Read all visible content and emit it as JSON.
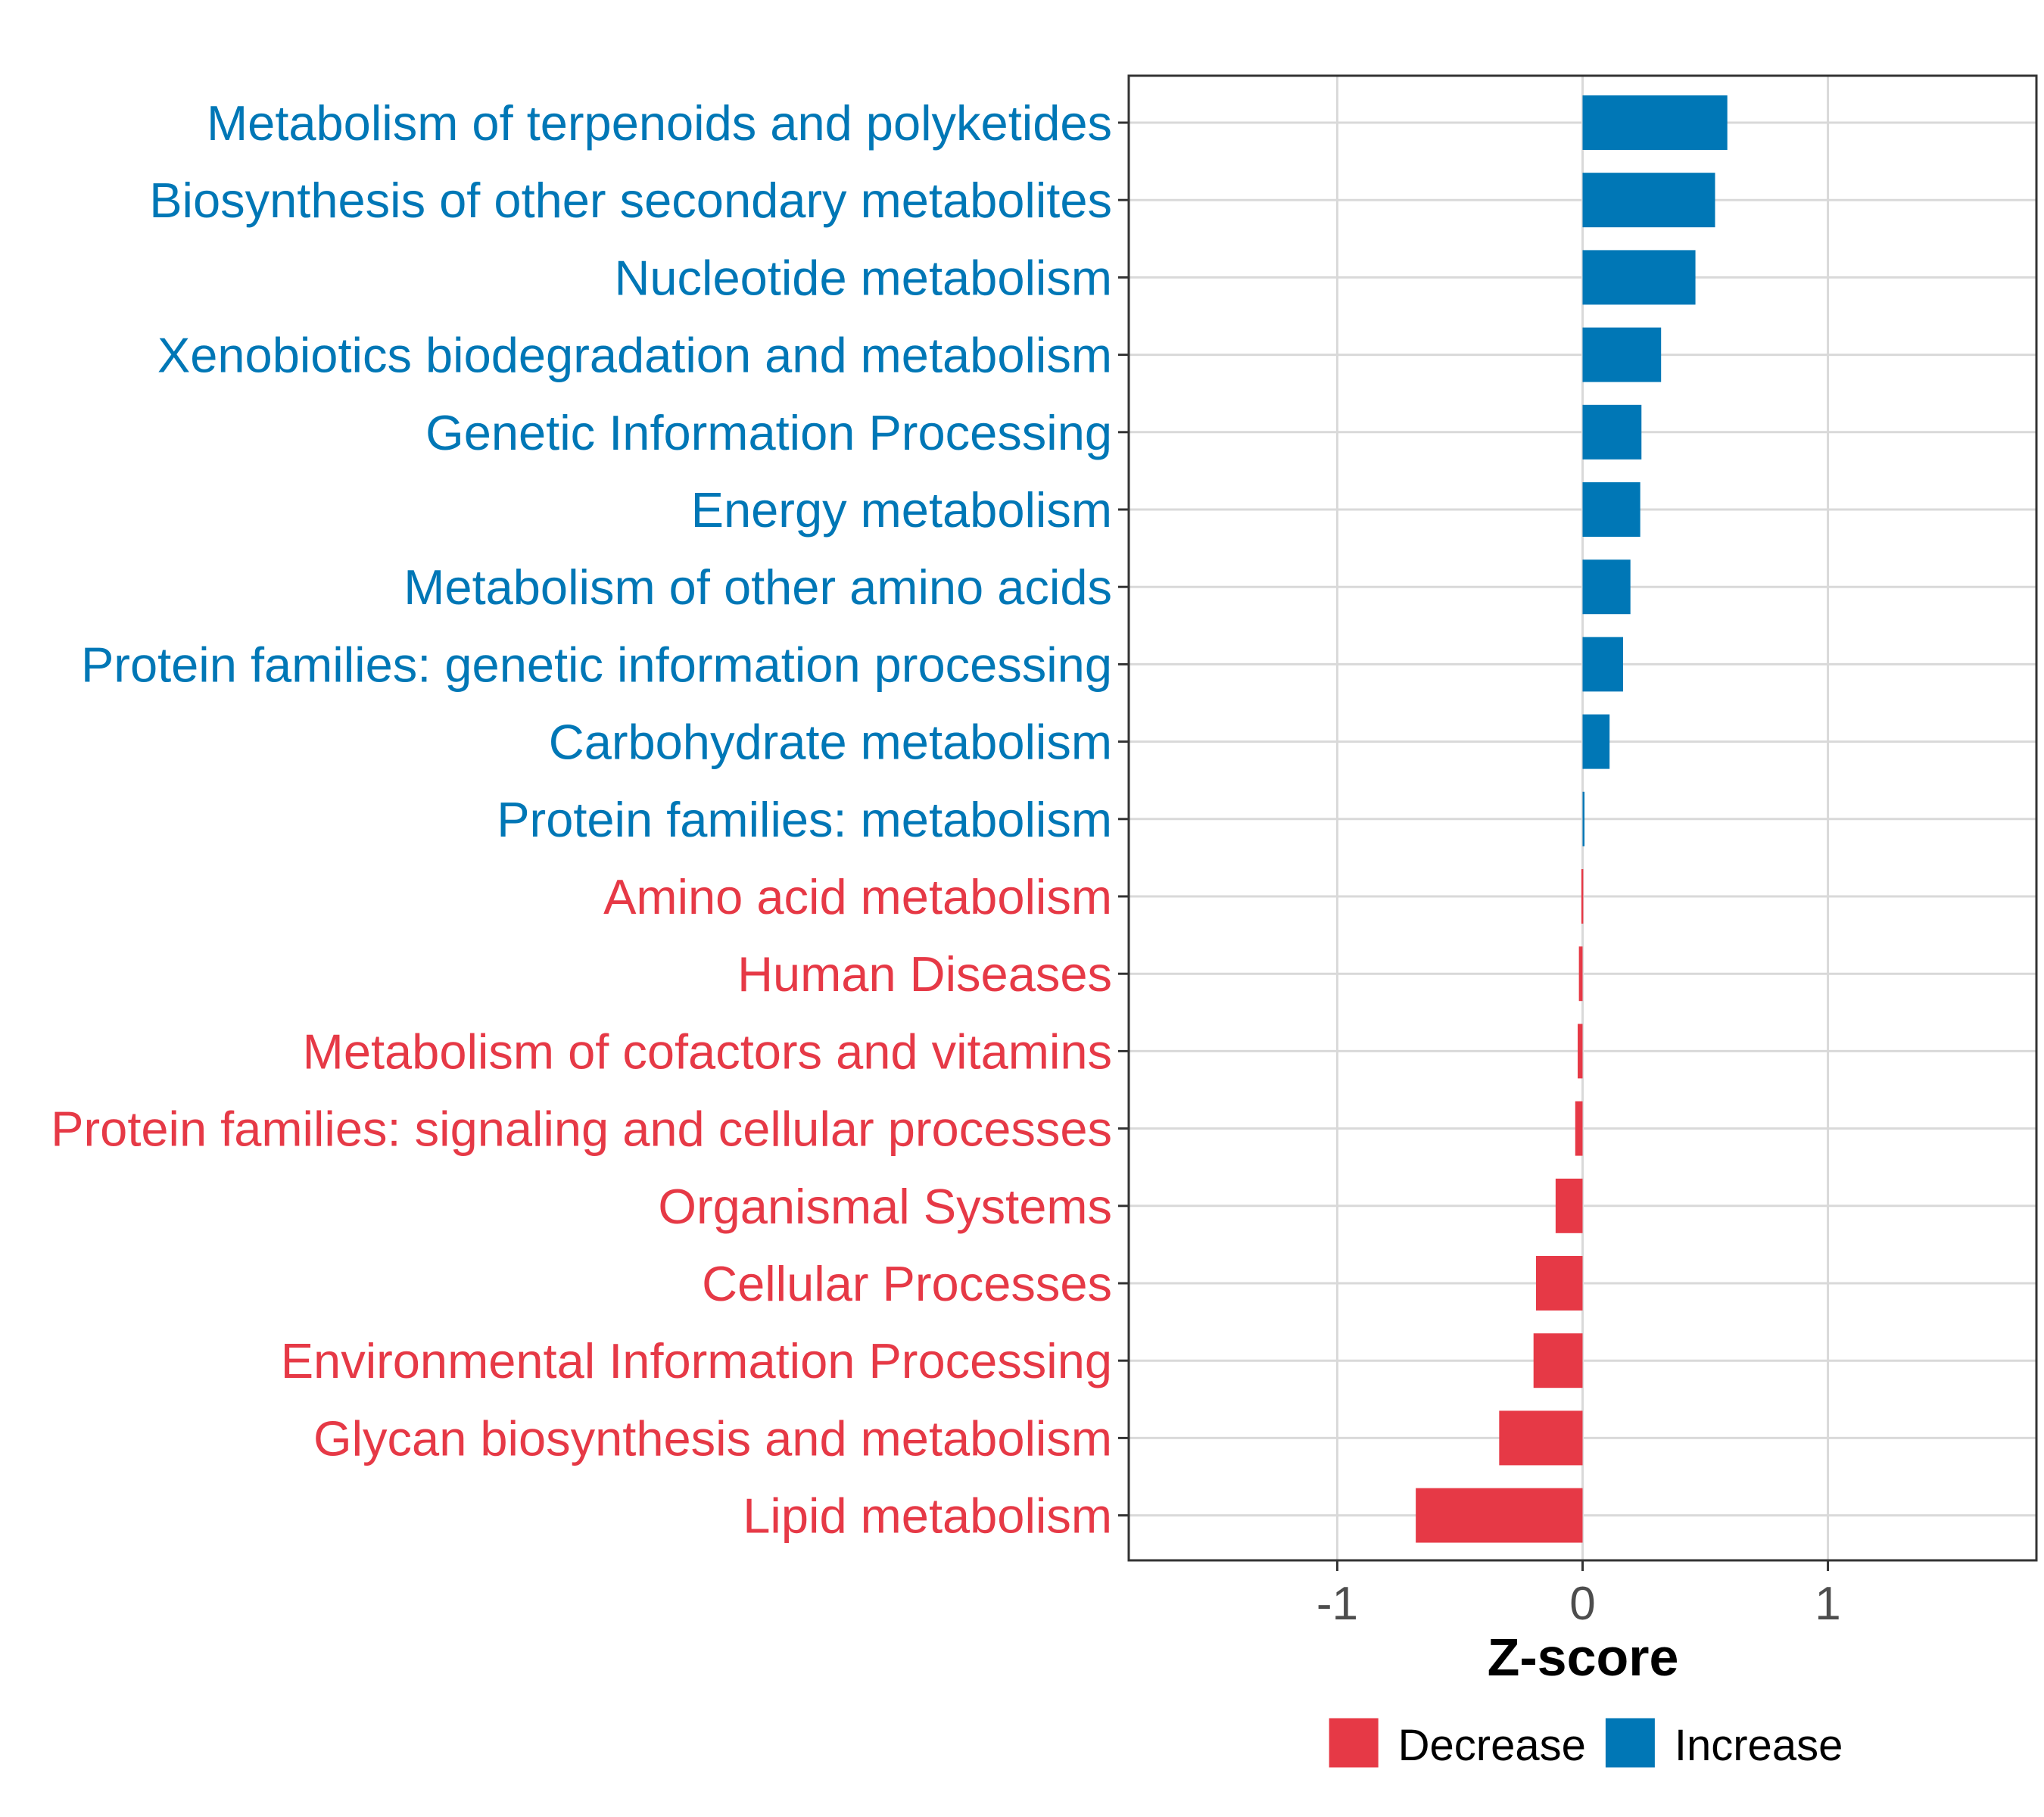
{
  "chart_data": {
    "type": "bar",
    "orientation": "horizontal",
    "xlabel": "Z-score",
    "ylabel": "",
    "xlim": [
      -1.85,
      1.85
    ],
    "xticks": [
      {
        "value": -1,
        "label": "-1"
      },
      {
        "value": 0,
        "label": "0"
      },
      {
        "value": 1,
        "label": "1"
      }
    ],
    "grid": true,
    "colors": {
      "Decrease": "#e63946",
      "Increase": "#0077b6"
    },
    "legend": {
      "position": "bottom",
      "entries": [
        {
          "key": "Decrease",
          "label": "Decrease"
        },
        {
          "key": "Increase",
          "label": "Increase"
        }
      ]
    },
    "categories": [
      "Metabolism of terpenoids and polyketides",
      "Biosynthesis of other secondary metabolites",
      "Nucleotide metabolism",
      "Xenobiotics biodegradation and metabolism",
      "Genetic Information Processing",
      "Energy metabolism",
      "Metabolism of other amino acids",
      "Protein families: genetic information processing",
      "Carbohydrate metabolism",
      "Protein families: metabolism",
      "Amino acid metabolism",
      "Human Diseases",
      "Metabolism of cofactors and vitamins",
      "Protein families: signaling and cellular processes",
      "Organismal Systems",
      "Cellular Processes",
      "Environmental Information Processing",
      "Glycan biosynthesis and metabolism",
      "Lipid metabolism"
    ],
    "values": [
      0.59,
      0.54,
      0.46,
      0.32,
      0.24,
      0.235,
      0.195,
      0.165,
      0.11,
      0.005,
      -0.005,
      -0.015,
      -0.02,
      -0.03,
      -0.11,
      -0.19,
      -0.2,
      -0.34,
      -0.68
    ],
    "groups": [
      "Increase",
      "Increase",
      "Increase",
      "Increase",
      "Increase",
      "Increase",
      "Increase",
      "Increase",
      "Increase",
      "Increase",
      "Decrease",
      "Decrease",
      "Decrease",
      "Decrease",
      "Decrease",
      "Decrease",
      "Decrease",
      "Decrease",
      "Decrease"
    ]
  }
}
